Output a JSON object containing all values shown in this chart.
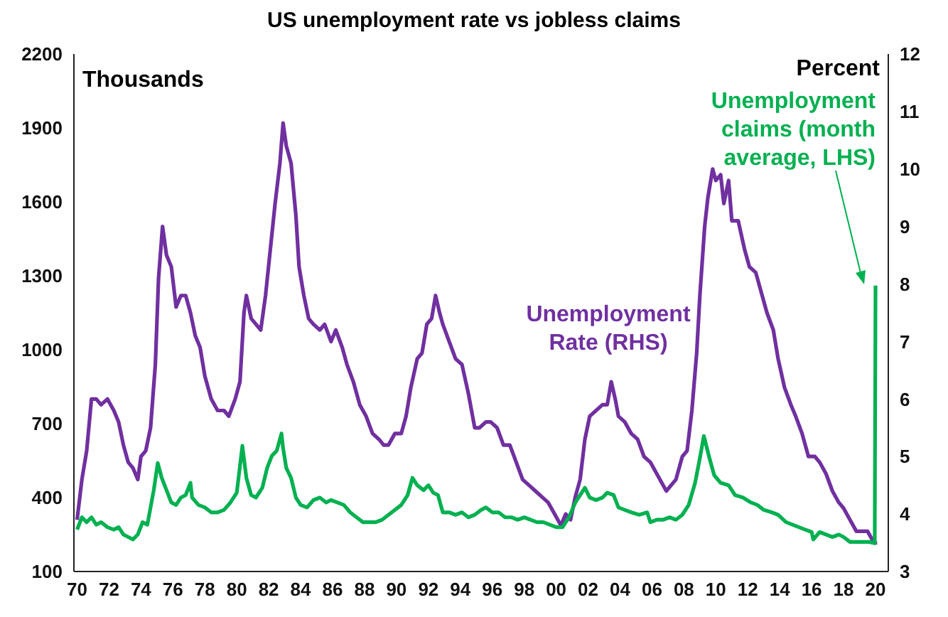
{
  "chart_data": {
    "type": "line",
    "title": "US unemployment rate vs jobless claims",
    "ylabel": "Thousands",
    "y2label": "Percent",
    "xlim": [
      1969.8,
      2020.8
    ],
    "xticks": [
      {
        "value": 1970,
        "label": "70"
      },
      {
        "value": 1972,
        "label": "72"
      },
      {
        "value": 1974,
        "label": "74"
      },
      {
        "value": 1976,
        "label": "76"
      },
      {
        "value": 1978,
        "label": "78"
      },
      {
        "value": 1980,
        "label": "80"
      },
      {
        "value": 1982,
        "label": "82"
      },
      {
        "value": 1984,
        "label": "84"
      },
      {
        "value": 1986,
        "label": "86"
      },
      {
        "value": 1988,
        "label": "88"
      },
      {
        "value": 1990,
        "label": "90"
      },
      {
        "value": 1992,
        "label": "92"
      },
      {
        "value": 1994,
        "label": "94"
      },
      {
        "value": 1996,
        "label": "96"
      },
      {
        "value": 1998,
        "label": "98"
      },
      {
        "value": 2000,
        "label": "00"
      },
      {
        "value": 2002,
        "label": "02"
      },
      {
        "value": 2004,
        "label": "04"
      },
      {
        "value": 2006,
        "label": "06"
      },
      {
        "value": 2008,
        "label": "08"
      },
      {
        "value": 2010,
        "label": "10"
      },
      {
        "value": 2012,
        "label": "12"
      },
      {
        "value": 2014,
        "label": "14"
      },
      {
        "value": 2016,
        "label": "16"
      },
      {
        "value": 2018,
        "label": "18"
      },
      {
        "value": 2020,
        "label": "20"
      }
    ],
    "ylim": [
      100,
      2200
    ],
    "yticks": [
      100,
      400,
      700,
      1000,
      1300,
      1600,
      1900,
      2200
    ],
    "y2lim": [
      3,
      12
    ],
    "y2ticks": [
      3,
      4,
      5,
      6,
      7,
      8,
      9,
      10,
      11,
      12
    ],
    "series": [
      {
        "name": "Unemployment Rate (RHS)",
        "color": "#7030a0",
        "axis": "y2",
        "x": [
          1970.0,
          1970.3,
          1970.6,
          1970.9,
          1971.2,
          1971.5,
          1971.9,
          1972.3,
          1972.6,
          1972.9,
          1973.2,
          1973.5,
          1973.8,
          1974.0,
          1974.3,
          1974.6,
          1974.9,
          1975.1,
          1975.35,
          1975.6,
          1975.9,
          1976.2,
          1976.5,
          1976.8,
          1977.1,
          1977.4,
          1977.7,
          1978.0,
          1978.4,
          1978.8,
          1979.2,
          1979.5,
          1979.9,
          1980.2,
          1980.45,
          1980.6,
          1980.9,
          1981.2,
          1981.5,
          1981.8,
          1982.1,
          1982.4,
          1982.7,
          1982.9,
          1983.1,
          1983.4,
          1983.7,
          1983.9,
          1984.2,
          1984.5,
          1984.8,
          1985.2,
          1985.5,
          1985.9,
          1986.2,
          1986.6,
          1986.9,
          1987.3,
          1987.7,
          1988.1,
          1988.5,
          1988.9,
          1989.2,
          1989.5,
          1989.9,
          1990.3,
          1990.6,
          1990.9,
          1991.3,
          1991.6,
          1991.9,
          1992.2,
          1992.45,
          1992.7,
          1992.9,
          1993.3,
          1993.7,
          1994.1,
          1994.5,
          1994.9,
          1995.2,
          1995.6,
          1995.9,
          1996.3,
          1996.7,
          1997.1,
          1997.5,
          1997.9,
          1998.3,
          1998.7,
          1999.1,
          1999.5,
          1999.9,
          2000.3,
          2000.6,
          2000.9,
          2001.2,
          2001.5,
          2001.8,
          2002.1,
          2002.5,
          2002.9,
          2003.2,
          2003.45,
          2003.7,
          2003.9,
          2004.3,
          2004.7,
          2005.1,
          2005.5,
          2005.9,
          2006.3,
          2006.7,
          2006.9,
          2007.2,
          2007.5,
          2007.9,
          2008.2,
          2008.5,
          2008.8,
          2009.0,
          2009.3,
          2009.5,
          2009.8,
          2010.0,
          2010.3,
          2010.5,
          2010.8,
          2011.0,
          2011.4,
          2011.8,
          2012.1,
          2012.5,
          2012.9,
          2013.2,
          2013.6,
          2013.9,
          2014.3,
          2014.7,
          2015.0,
          2015.4,
          2015.8,
          2016.2,
          2016.5,
          2016.9,
          2017.3,
          2017.7,
          2018.0,
          2018.4,
          2018.8,
          2019.2,
          2019.5,
          2019.9,
          2020.1
        ],
        "values": [
          3.9,
          4.6,
          5.1,
          6.0,
          6.0,
          5.9,
          6.0,
          5.8,
          5.6,
          5.2,
          4.9,
          4.8,
          4.6,
          5.0,
          5.1,
          5.5,
          6.6,
          8.1,
          9.0,
          8.5,
          8.3,
          7.6,
          7.8,
          7.8,
          7.5,
          7.1,
          6.9,
          6.4,
          6.0,
          5.8,
          5.8,
          5.7,
          6.0,
          6.3,
          7.5,
          7.8,
          7.4,
          7.3,
          7.2,
          7.8,
          8.6,
          9.4,
          10.1,
          10.8,
          10.4,
          10.1,
          9.2,
          8.3,
          7.8,
          7.4,
          7.3,
          7.2,
          7.3,
          7.0,
          7.2,
          6.9,
          6.6,
          6.3,
          5.9,
          5.7,
          5.4,
          5.3,
          5.2,
          5.2,
          5.4,
          5.4,
          5.7,
          6.2,
          6.7,
          6.8,
          7.3,
          7.4,
          7.8,
          7.5,
          7.3,
          7.0,
          6.7,
          6.6,
          6.1,
          5.5,
          5.5,
          5.6,
          5.6,
          5.5,
          5.2,
          5.2,
          4.9,
          4.6,
          4.5,
          4.4,
          4.3,
          4.2,
          4.0,
          3.8,
          4.0,
          3.9,
          4.3,
          4.6,
          5.3,
          5.7,
          5.8,
          5.9,
          5.9,
          6.3,
          6.0,
          5.7,
          5.6,
          5.4,
          5.3,
          5.0,
          4.9,
          4.7,
          4.5,
          4.4,
          4.5,
          4.6,
          5.0,
          5.1,
          5.8,
          6.8,
          7.8,
          9.0,
          9.5,
          10.0,
          9.8,
          9.9,
          9.4,
          9.8,
          9.1,
          9.1,
          8.6,
          8.3,
          8.2,
          7.8,
          7.5,
          7.2,
          6.7,
          6.2,
          5.9,
          5.7,
          5.4,
          5.0,
          5.0,
          4.9,
          4.7,
          4.4,
          4.2,
          4.1,
          3.9,
          3.7,
          3.7,
          3.7,
          3.5,
          3.5
        ]
      },
      {
        "name": "Unemployment claims (month average, LHS)",
        "color": "#00b050",
        "x": [
          1970.0,
          1970.3,
          1970.6,
          1970.9,
          1971.2,
          1971.5,
          1971.9,
          1972.3,
          1972.6,
          1972.9,
          1973.2,
          1973.5,
          1973.8,
          1974.1,
          1974.4,
          1974.8,
          1975.05,
          1975.3,
          1975.6,
          1975.9,
          1976.2,
          1976.5,
          1976.8,
          1977.1,
          1977.2,
          1977.6,
          1978.0,
          1978.4,
          1978.8,
          1979.2,
          1979.6,
          1980.0,
          1980.35,
          1980.6,
          1980.9,
          1981.2,
          1981.6,
          1981.9,
          1982.2,
          1982.5,
          1982.8,
          1982.9,
          1983.1,
          1983.4,
          1983.7,
          1984.0,
          1984.4,
          1984.8,
          1985.2,
          1985.6,
          1985.9,
          1986.3,
          1986.7,
          1987.1,
          1987.5,
          1987.9,
          1988.3,
          1988.7,
          1989.1,
          1989.5,
          1989.9,
          1990.3,
          1990.7,
          1991.0,
          1991.3,
          1991.7,
          1992.0,
          1992.3,
          1992.6,
          1992.9,
          1993.3,
          1993.7,
          1994.1,
          1994.5,
          1994.9,
          1995.3,
          1995.6,
          1996.0,
          1996.4,
          1996.8,
          1997.2,
          1997.6,
          1998.0,
          1998.4,
          1998.8,
          1999.2,
          1999.6,
          2000.0,
          2000.4,
          2000.8,
          2001.2,
          2001.5,
          2001.8,
          2002.1,
          2002.5,
          2002.9,
          2003.2,
          2003.6,
          2003.9,
          2004.3,
          2004.7,
          2005.2,
          2005.7,
          2005.9,
          2006.3,
          2006.7,
          2007.1,
          2007.5,
          2007.9,
          2008.3,
          2008.7,
          2009.0,
          2009.25,
          2009.6,
          2009.9,
          2010.3,
          2010.8,
          2011.2,
          2011.7,
          2012.2,
          2012.6,
          2013.0,
          2013.5,
          2013.9,
          2014.4,
          2014.8,
          2015.2,
          2015.6,
          2016.0,
          2016.1,
          2016.5,
          2016.9,
          2017.3,
          2017.7,
          2018.0,
          2018.4,
          2018.8,
          2019.2,
          2019.6,
          2019.95,
          2020.0
        ],
        "values": [
          270,
          320,
          300,
          320,
          290,
          300,
          280,
          270,
          280,
          250,
          240,
          230,
          250,
          300,
          290,
          430,
          540,
          480,
          430,
          380,
          370,
          400,
          410,
          460,
          400,
          370,
          360,
          340,
          340,
          350,
          380,
          420,
          610,
          480,
          410,
          400,
          440,
          520,
          570,
          590,
          660,
          600,
          520,
          480,
          400,
          370,
          360,
          390,
          400,
          380,
          390,
          380,
          370,
          340,
          320,
          300,
          300,
          300,
          310,
          330,
          350,
          370,
          410,
          480,
          450,
          430,
          450,
          420,
          410,
          340,
          340,
          330,
          340,
          320,
          330,
          350,
          360,
          340,
          340,
          320,
          320,
          310,
          320,
          310,
          300,
          300,
          290,
          280,
          280,
          320,
          380,
          410,
          440,
          400,
          390,
          400,
          420,
          410,
          360,
          350,
          340,
          330,
          340,
          300,
          310,
          310,
          320,
          310,
          330,
          370,
          460,
          560,
          650,
          560,
          490,
          460,
          450,
          410,
          400,
          380,
          370,
          350,
          340,
          330,
          300,
          290,
          280,
          270,
          260,
          230,
          260,
          250,
          240,
          250,
          240,
          220,
          220,
          220,
          220,
          215,
          1260
        ]
      }
    ]
  }
}
